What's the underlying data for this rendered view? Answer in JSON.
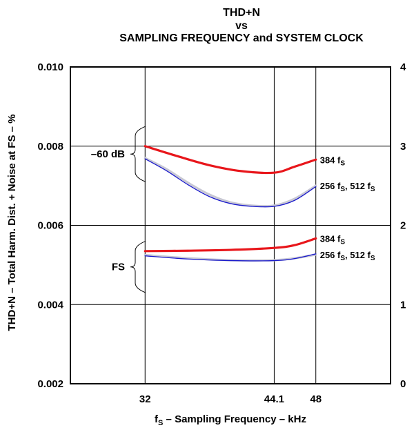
{
  "chart_data": {
    "type": "line",
    "title_lines": [
      "THD+N",
      "vs",
      "SAMPLING FREQUENCY and SYSTEM CLOCK"
    ],
    "xlabel": {
      "main": "f",
      "sub": "S",
      "rest": " – Sampling Frequency – kHz"
    },
    "ylabel": "THD+N – Total Harm. Dist. + Noise at FS – %",
    "x_ticks": [
      "32",
      "44.1",
      "48"
    ],
    "x_positions": [
      32,
      44.1,
      48
    ],
    "xlim": [
      25,
      55
    ],
    "ylim": [
      0.002,
      0.01
    ],
    "y_ticks": [
      "0.010",
      "0.008",
      "0.006",
      "0.004",
      "0.002"
    ],
    "y_tick_values": [
      0.01,
      0.008,
      0.006,
      0.004,
      0.002
    ],
    "y2_ticks": [
      "4",
      "3",
      "2",
      "1",
      "0"
    ],
    "y2_tick_values": [
      4,
      3,
      2,
      1,
      0
    ],
    "y2lim": [
      0,
      4
    ],
    "grid": true,
    "groups": [
      {
        "label": "–60 dB",
        "y_top": 0.0085,
        "y_bottom": 0.0071
      },
      {
        "label": "FS",
        "y_top": 0.0056,
        "y_bottom": 0.0043
      }
    ],
    "series": [
      {
        "group": "–60 dB",
        "color": "#e8161b",
        "x": [
          32,
          35,
          38,
          41,
          44.1,
          46,
          48
        ],
        "y": [
          0.008,
          0.00775,
          0.00752,
          0.00737,
          0.00733,
          0.00748,
          0.00766
        ]
      },
      {
        "group": "–60 dB",
        "color": "#c8c8d4",
        "x": [
          32,
          34,
          36,
          38,
          40,
          42,
          44.1,
          46,
          48
        ],
        "y": [
          0.0077,
          0.00742,
          0.00708,
          0.00678,
          0.00658,
          0.0065,
          0.0065,
          0.00667,
          0.007
        ]
      },
      {
        "group": "–60 dB",
        "color": "#1a1acc",
        "x": [
          32,
          34,
          36,
          38,
          40,
          42,
          44.1,
          46,
          48
        ],
        "y": [
          0.00768,
          0.00738,
          0.00703,
          0.00673,
          0.00655,
          0.00648,
          0.00648,
          0.00663,
          0.00698
        ]
      },
      {
        "group": "FS",
        "color": "#e8161b",
        "x": [
          32,
          36,
          40,
          44.1,
          46,
          48
        ],
        "y": [
          0.00535,
          0.00536,
          0.00538,
          0.00543,
          0.0055,
          0.00567
        ]
      },
      {
        "group": "FS",
        "color": "#c8c8d4",
        "x": [
          32,
          36,
          40,
          44.1,
          46,
          48
        ],
        "y": [
          0.00525,
          0.00517,
          0.00512,
          0.00512,
          0.00517,
          0.00526
        ]
      },
      {
        "group": "FS",
        "color": "#1a1acc",
        "x": [
          32,
          36,
          40,
          44.1,
          46,
          48
        ],
        "y": [
          0.00523,
          0.00515,
          0.00511,
          0.00511,
          0.00516,
          0.00528
        ]
      }
    ],
    "curve_labels": [
      {
        "text": "384 f",
        "sub": "S",
        "rest": "",
        "y": 0.00766
      },
      {
        "text": "256 f",
        "sub": "S",
        "rest": ", 512 f",
        "sub2": "S",
        "y": 0.007
      },
      {
        "text": "384 f",
        "sub": "S",
        "rest": "",
        "y": 0.00567
      },
      {
        "text": "256 f",
        "sub": "S",
        "rest": ", 512 f",
        "sub2": "S",
        "y": 0.00526
      }
    ]
  }
}
